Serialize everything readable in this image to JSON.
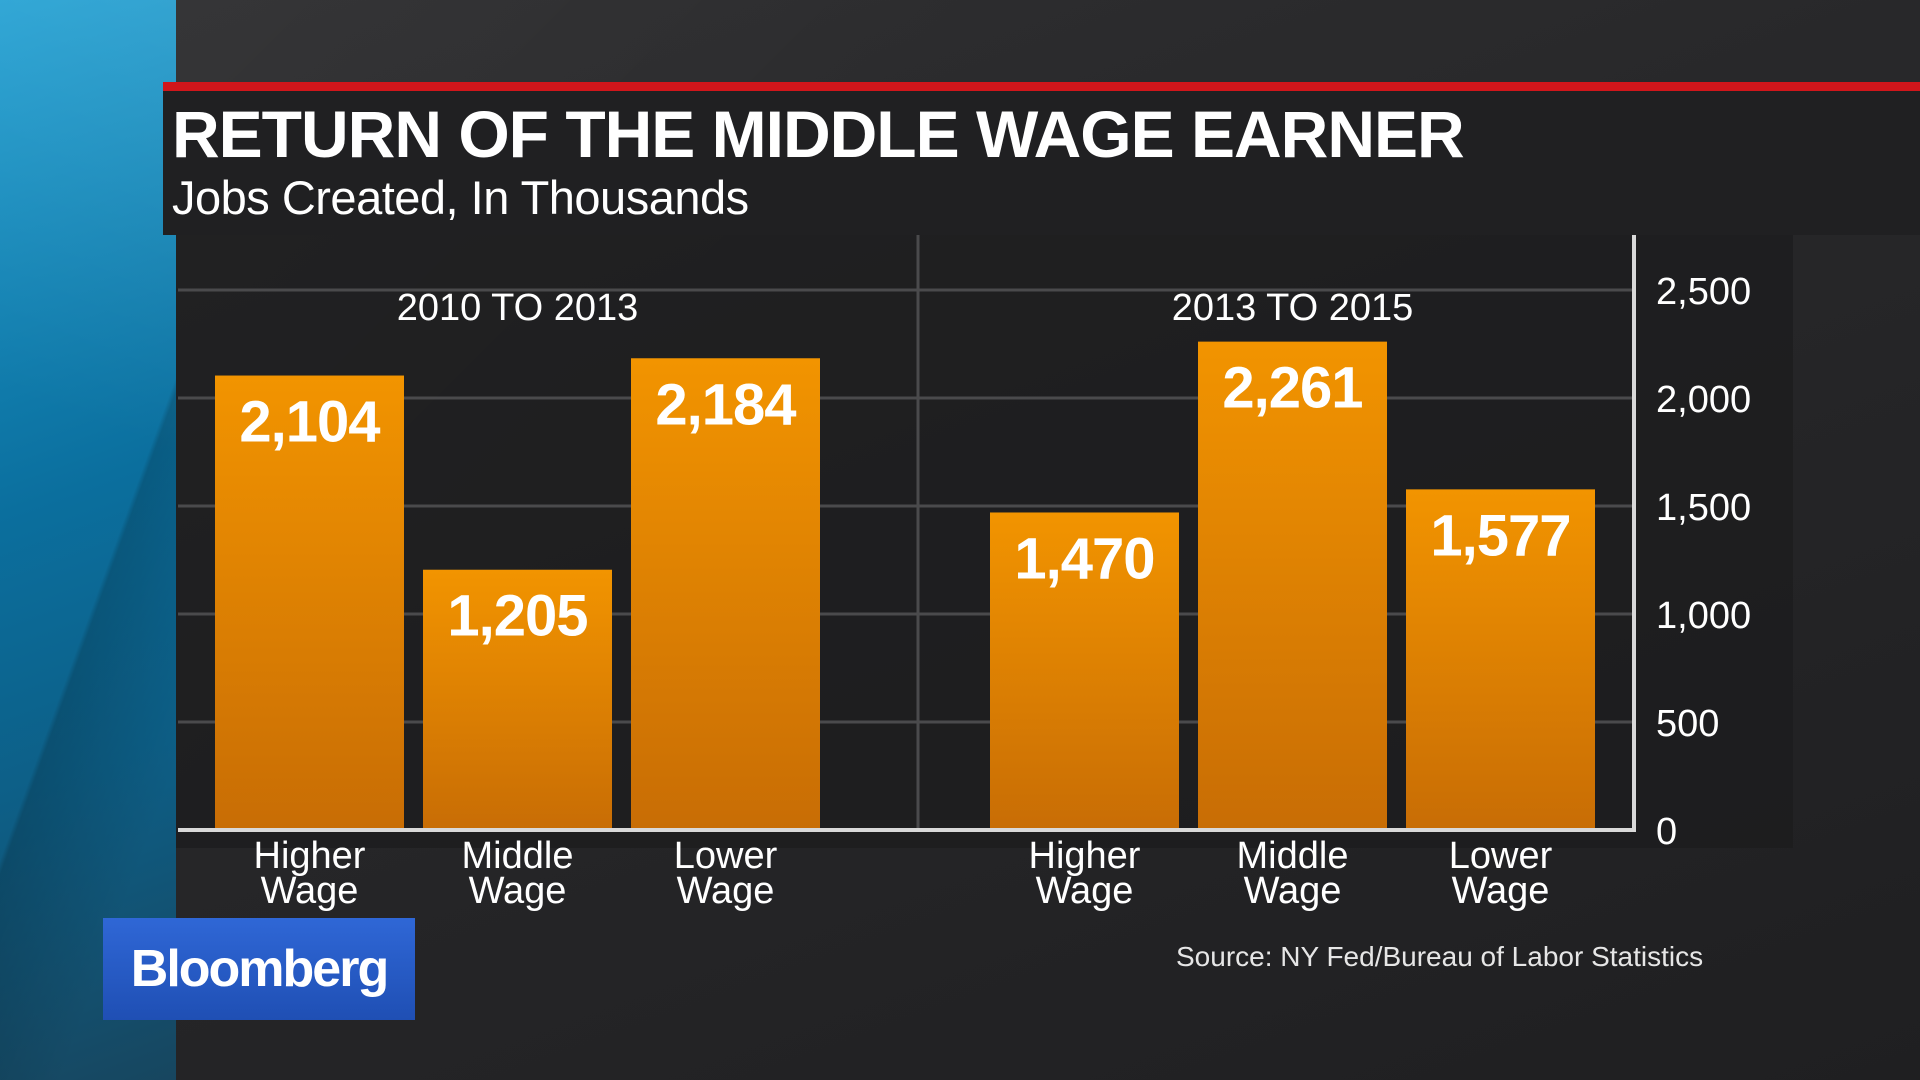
{
  "title": "RETURN OF THE MIDDLE WAGE EARNER",
  "subtitle": "Jobs Created, In Thousands",
  "source": "Source: NY Fed/Bureau of Labor Statistics",
  "logo": "Bloomberg",
  "colors": {
    "bar_top": "#f29400",
    "bar_bottom": "#c86d05",
    "grid": "#4a4a4c",
    "axis": "#d9d9d9",
    "text": "#ffffff",
    "accent_red": "#d1161b",
    "logo_blue": "#2356c4"
  },
  "chart_data": {
    "type": "bar",
    "title": "RETURN OF THE MIDDLE WAGE EARNER",
    "subtitle": "Jobs Created, In Thousands",
    "ylim": [
      0,
      2500
    ],
    "yticks": [
      0,
      500,
      1000,
      1500,
      2000,
      2500
    ],
    "ytick_labels": [
      "0",
      "500",
      "1,000",
      "1,500",
      "2,000",
      "2,500"
    ],
    "y_axis_position": "right",
    "grid": true,
    "groups": [
      {
        "name": "2010 TO 2013",
        "bars": [
          {
            "category": [
              "Higher",
              "Wage"
            ],
            "value": 2104,
            "label": "2,104"
          },
          {
            "category": [
              "Middle",
              "Wage"
            ],
            "value": 1205,
            "label": "1,205"
          },
          {
            "category": [
              "Lower",
              "Wage"
            ],
            "value": 2184,
            "label": "2,184"
          }
        ]
      },
      {
        "name": "2013 TO 2015",
        "bars": [
          {
            "category": [
              "Higher",
              "Wage"
            ],
            "value": 1470,
            "label": "1,470"
          },
          {
            "category": [
              "Middle",
              "Wage"
            ],
            "value": 2261,
            "label": "2,261"
          },
          {
            "category": [
              "Lower",
              "Wage"
            ],
            "value": 1577,
            "label": "1,577"
          }
        ]
      }
    ]
  }
}
